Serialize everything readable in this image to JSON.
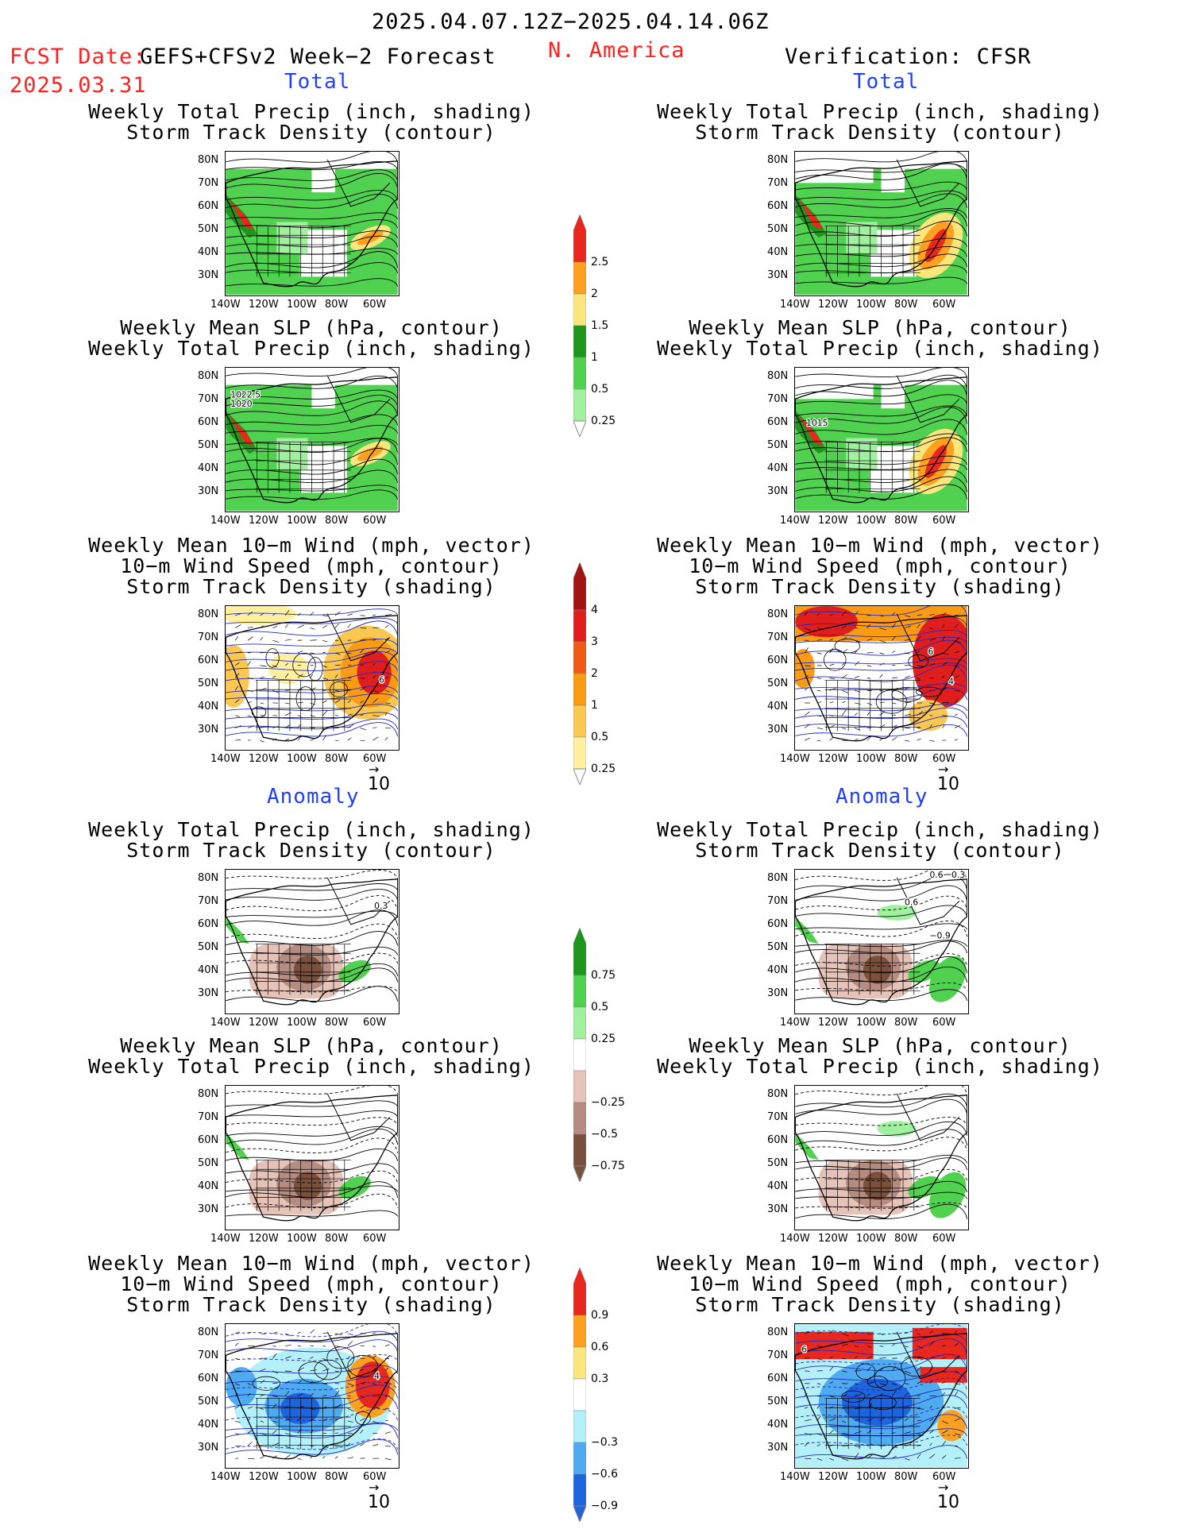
{
  "header": {
    "period": "2025.04.07.12Z−2025.04.14.06Z",
    "fcst_label": "FCST Date:",
    "fcst_date": "2025.03.31",
    "model": "GEFS+CFSv2 Week−2 Forecast",
    "region": "N. America",
    "verification": "Verification: CFSR"
  },
  "sections": {
    "total": "Total",
    "anomaly": "Anomaly"
  },
  "titles": {
    "precip_storm": [
      "Weekly Total Precip (inch, shading)",
      "Storm Track Density (contour)"
    ],
    "slp_precip": [
      "Weekly Mean SLP (hPa, contour)",
      "Weekly Total Precip (inch, shading)"
    ],
    "wind_storm": [
      "Weekly Mean 10−m Wind (mph, vector)",
      "10−m Wind Speed (mph, contour)",
      "Storm Track Density (shading)"
    ]
  },
  "lat_labels": [
    "80N",
    "70N",
    "60N",
    "50N",
    "40N",
    "30N"
  ],
  "lon_labels": [
    "140W",
    "120W",
    "100W",
    "80W",
    "60W"
  ],
  "vector_ref": "10",
  "map_annotations": {
    "fc_slp_total": [
      "1022.5",
      "1020"
    ],
    "ob_slp_total": [
      "1015"
    ],
    "fc_wind_total": [
      "6"
    ],
    "ob_wind_total": [
      "6",
      "4"
    ],
    "fc_precip_anom": [
      "0.3"
    ],
    "ob_precip_anom": [
      "0.6",
      "0.3",
      "0.6",
      "−0.9"
    ],
    "fc_wind_anom": [
      "4"
    ],
    "ob_wind_anom": [
      "6"
    ]
  },
  "colorbars": {
    "precip_total": {
      "labels": [
        "2.5",
        "2",
        "1.5",
        "1",
        "0.5",
        "0.25"
      ],
      "colors": [
        "#e8281e",
        "#ffa01e",
        "#fae67d",
        "#1e961e",
        "#50d250",
        "#a0f0a0"
      ]
    },
    "storm_total": {
      "labels": [
        "4",
        "3",
        "2",
        "1",
        "0.5",
        "0.25"
      ],
      "colors": [
        "#a01414",
        "#e11e1e",
        "#f05a14",
        "#fa9b14",
        "#fac850",
        "#fff0a0"
      ]
    },
    "precip_anom": {
      "labels": [
        "0.75",
        "0.5",
        "0.25",
        "−0.25",
        "−0.5",
        "−0.75"
      ],
      "colors": [
        "#1e961e",
        "#50d250",
        "#a0f0a0",
        "#ffffff",
        "#e6c3b9",
        "#b48c82",
        "#78503c"
      ]
    },
    "storm_anom": {
      "labels": [
        "0.9",
        "0.6",
        "0.3",
        "−0.3",
        "−0.6",
        "−0.9"
      ],
      "colors": [
        "#e8281e",
        "#ffa01e",
        "#fae67d",
        "#ffffff",
        "#b4f0fa",
        "#50aaf0",
        "#1e64dc"
      ]
    }
  }
}
